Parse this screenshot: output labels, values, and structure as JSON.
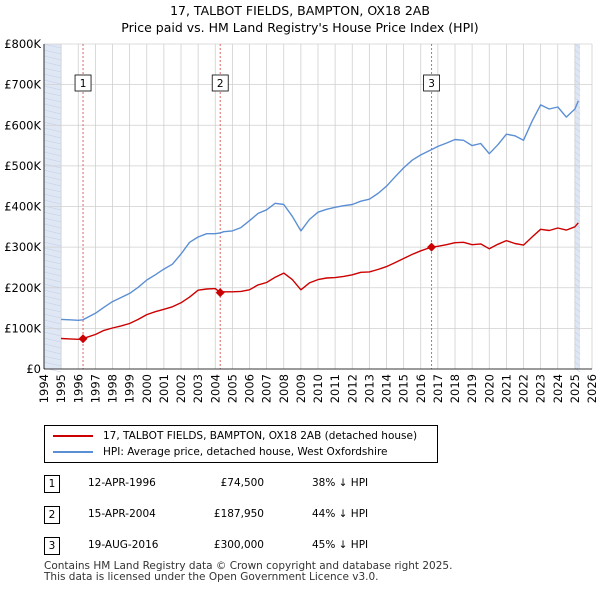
{
  "title_line1": "17, TALBOT FIELDS, BAMPTON, OX18 2AB",
  "title_line2": "Price paid vs. HM Land Registry's House Price Index (HPI)",
  "colors": {
    "property": "#cc0000",
    "hpi": "#5b8fd4",
    "shade": "#dfe7f5",
    "grid": "#d0d0d0"
  },
  "legend": {
    "property_label": "17, TALBOT FIELDS, BAMPTON, OX18 2AB (detached house)",
    "hpi_label": "HPI: Average price, detached house, West Oxfordshire"
  },
  "transactions": [
    {
      "num": "1",
      "date": "12-APR-1996",
      "price": "£74,500",
      "hpi_diff": "38% ↓ HPI"
    },
    {
      "num": "2",
      "date": "15-APR-2004",
      "price": "£187,950",
      "hpi_diff": "44% ↓ HPI"
    },
    {
      "num": "3",
      "date": "19-AUG-2016",
      "price": "£300,000",
      "hpi_diff": "45% ↓ HPI"
    }
  ],
  "footer_line1": "Contains HM Land Registry data © Crown copyright and database right 2025.",
  "footer_line2": "This data is licensed under the Open Government Licence v3.0.",
  "chart_data": {
    "type": "line",
    "title": "Price paid vs. HM Land Registry's House Price Index (HPI)",
    "xlim": [
      1994,
      2026
    ],
    "ylim": [
      0,
      800000
    ],
    "x_ticks": [
      "1994",
      "1995",
      "1996",
      "1997",
      "1998",
      "1999",
      "2000",
      "2001",
      "2002",
      "2003",
      "2004",
      "2005",
      "2006",
      "2007",
      "2008",
      "2009",
      "2010",
      "2011",
      "2012",
      "2013",
      "2014",
      "2015",
      "2016",
      "2017",
      "2018",
      "2019",
      "2020",
      "2021",
      "2022",
      "2023",
      "2024",
      "2025",
      "2026"
    ],
    "y_ticks": [
      {
        "value": 0,
        "label": "£0"
      },
      {
        "value": 100000,
        "label": "£100K"
      },
      {
        "value": 200000,
        "label": "£200K"
      },
      {
        "value": 300000,
        "label": "£300K"
      },
      {
        "value": 400000,
        "label": "£400K"
      },
      {
        "value": 500000,
        "label": "£500K"
      },
      {
        "value": 600000,
        "label": "£600K"
      },
      {
        "value": 700000,
        "label": "£700K"
      },
      {
        "value": 800000,
        "label": "£800K"
      }
    ],
    "shaded_ranges": [
      [
        1994,
        1995
      ],
      [
        2025.0,
        2025.3
      ]
    ],
    "sales": [
      {
        "label": "1",
        "x": 1996.28,
        "y": 74500
      },
      {
        "label": "2",
        "x": 2004.29,
        "y": 187950
      },
      {
        "label": "3",
        "x": 2016.63,
        "y": 300000
      }
    ],
    "series": [
      {
        "name": "17, TALBOT FIELDS, BAMPTON, OX18 2AB (detached house)",
        "x": [
          1995.0,
          1995.5,
          1996.0,
          1996.28,
          1996.5,
          1997.0,
          1997.5,
          1998.0,
          1998.5,
          1999.0,
          1999.5,
          2000.0,
          2000.5,
          2001.0,
          2001.5,
          2002.0,
          2002.5,
          2003.0,
          2003.5,
          2004.0,
          2004.29,
          2004.5,
          2005.0,
          2005.5,
          2006.0,
          2006.5,
          2007.0,
          2007.5,
          2008.0,
          2008.5,
          2009.0,
          2009.5,
          2010.0,
          2010.5,
          2011.0,
          2011.5,
          2012.0,
          2012.5,
          2013.0,
          2013.5,
          2014.0,
          2014.5,
          2015.0,
          2015.5,
          2016.0,
          2016.63,
          2017.0,
          2017.5,
          2018.0,
          2018.5,
          2019.0,
          2019.5,
          2020.0,
          2020.5,
          2021.0,
          2021.5,
          2022.0,
          2022.5,
          2023.0,
          2023.5,
          2024.0,
          2024.5,
          2025.0,
          2025.2
        ],
        "y": [
          75000,
          74000,
          73000,
          74500,
          78000,
          85000,
          95000,
          101000,
          106000,
          112000,
          122000,
          134000,
          141000,
          147000,
          153000,
          163000,
          177000,
          194000,
          197000,
          198000,
          187950,
          190000,
          190000,
          191000,
          195000,
          207000,
          213000,
          226000,
          236000,
          220000,
          195000,
          212000,
          220000,
          224000,
          225000,
          228000,
          232000,
          238000,
          239000,
          245000,
          252000,
          262000,
          272000,
          282000,
          291000,
          300000,
          302000,
          306000,
          311000,
          312000,
          306000,
          308000,
          296000,
          307000,
          316000,
          309000,
          305000,
          325000,
          344000,
          341000,
          347000,
          342000,
          350000,
          360000
        ]
      },
      {
        "name": "HPI: Average price, detached house, West Oxfordshire",
        "x": [
          1995.0,
          1995.5,
          1996.0,
          1996.28,
          1996.5,
          1997.0,
          1997.5,
          1998.0,
          1998.5,
          1999.0,
          1999.5,
          2000.0,
          2000.5,
          2001.0,
          2001.5,
          2002.0,
          2002.5,
          2003.0,
          2003.5,
          2004.0,
          2004.29,
          2004.5,
          2005.0,
          2005.5,
          2006.0,
          2006.5,
          2007.0,
          2007.5,
          2008.0,
          2008.5,
          2009.0,
          2009.5,
          2010.0,
          2010.5,
          2011.0,
          2011.5,
          2012.0,
          2012.5,
          2013.0,
          2013.5,
          2014.0,
          2014.5,
          2015.0,
          2015.5,
          2016.0,
          2016.63,
          2017.0,
          2017.5,
          2018.0,
          2018.5,
          2019.0,
          2019.5,
          2020.0,
          2020.5,
          2021.0,
          2021.5,
          2022.0,
          2022.5,
          2023.0,
          2023.5,
          2024.0,
          2024.5,
          2025.0,
          2025.2
        ],
        "y": [
          122000,
          121000,
          120000,
          121000,
          126000,
          137000,
          152000,
          166000,
          176000,
          186000,
          201000,
          219000,
          232000,
          246000,
          258000,
          283000,
          312000,
          325000,
          333000,
          333000,
          335000,
          338000,
          340000,
          348000,
          365000,
          383000,
          392000,
          408000,
          405000,
          376000,
          340000,
          368000,
          386000,
          393000,
          398000,
          402000,
          405000,
          413000,
          418000,
          432000,
          450000,
          473000,
          495000,
          514000,
          527000,
          540000,
          548000,
          556000,
          565000,
          563000,
          550000,
          555000,
          530000,
          552000,
          578000,
          574000,
          563000,
          610000,
          650000,
          640000,
          645000,
          620000,
          640000,
          660000
        ]
      }
    ]
  }
}
